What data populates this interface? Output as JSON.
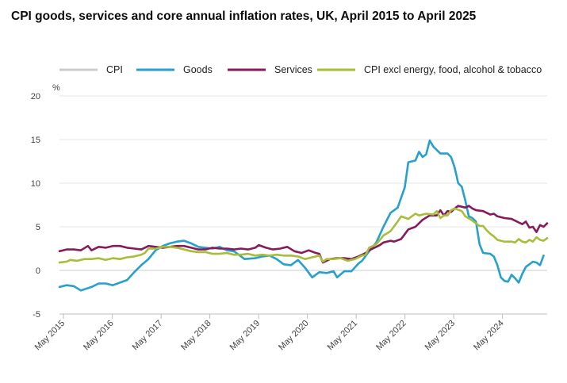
{
  "chart_data": {
    "type": "line",
    "title": "CPI goods, services and core annual inflation rates, UK, April 2015 to April 2025",
    "ylabel": "%",
    "xlabel": "",
    "ylim": [
      -5,
      20
    ],
    "yticks": [
      "20",
      "15",
      "10",
      "5",
      "0",
      "-5"
    ],
    "x_tick_labels": [
      "May 2015",
      "May 2016",
      "May 2017",
      "May 2018",
      "May 2019",
      "May 2020",
      "May 2021",
      "May 2022",
      "May 2023",
      "May 2024"
    ],
    "x_start": "Apr 2015",
    "x_end": "Apr 2025",
    "legend": [
      {
        "name": "CPI",
        "color": "#cccccc"
      },
      {
        "name": "Goods",
        "color": "#27a0cc"
      },
      {
        "name": "Services",
        "color": "#871a5b"
      },
      {
        "name": "CPI excl energy, food, alcohol & tobacco",
        "color": "#a8bd3a"
      }
    ],
    "series": [
      {
        "name": "Goods",
        "color": "#27a0cc",
        "anchors": [
          [
            0,
            -1.9
          ],
          [
            2,
            -1.7
          ],
          [
            4,
            -1.8
          ],
          [
            6,
            -2.3
          ],
          [
            9,
            -1.9
          ],
          [
            11,
            -1.5
          ],
          [
            13,
            -1.5
          ],
          [
            15,
            -1.7
          ],
          [
            17,
            -1.4
          ],
          [
            19,
            -1.1
          ],
          [
            21,
            -0.2
          ],
          [
            23,
            0.6
          ],
          [
            25,
            1.3
          ],
          [
            27,
            2.3
          ],
          [
            29,
            2.8
          ],
          [
            31,
            3.1
          ],
          [
            33,
            3.3
          ],
          [
            35,
            3.4
          ],
          [
            37,
            3.1
          ],
          [
            39,
            2.7
          ],
          [
            41,
            2.6
          ],
          [
            43,
            2.5
          ],
          [
            45,
            2.7
          ],
          [
            47,
            2.3
          ],
          [
            49,
            2.2
          ],
          [
            52,
            1.3
          ],
          [
            55,
            1.4
          ],
          [
            57,
            1.6
          ],
          [
            59,
            1.7
          ],
          [
            61,
            1.3
          ],
          [
            63,
            0.7
          ],
          [
            65,
            0.6
          ],
          [
            67,
            1.2
          ],
          [
            69,
            0.3
          ],
          [
            71,
            -0.8
          ],
          [
            73,
            -0.2
          ],
          [
            75,
            -0.3
          ],
          [
            77,
            -0.1
          ],
          [
            78,
            -0.8
          ],
          [
            80,
            -0.1
          ],
          [
            82,
            -0.1
          ],
          [
            84,
            0.8
          ],
          [
            85,
            1.1
          ],
          [
            87,
            2.2
          ],
          [
            89,
            3.2
          ],
          [
            91,
            5.0
          ],
          [
            93,
            6.6
          ],
          [
            95,
            7.2
          ],
          [
            97,
            9.5
          ],
          [
            98,
            12.4
          ],
          [
            100,
            12.6
          ],
          [
            101,
            13.6
          ],
          [
            102,
            13.0
          ],
          [
            103,
            13.3
          ],
          [
            104,
            14.9
          ],
          [
            105,
            14.2
          ],
          [
            107,
            13.4
          ],
          [
            109,
            13.4
          ],
          [
            110,
            13.0
          ],
          [
            111,
            11.8
          ],
          [
            112,
            10.0
          ],
          [
            113,
            9.6
          ],
          [
            114,
            8.0
          ],
          [
            115,
            6.2
          ],
          [
            116,
            6.0
          ],
          [
            117,
            5.6
          ],
          [
            118,
            3.0
          ],
          [
            119,
            2.0
          ],
          [
            121,
            1.9
          ],
          [
            122,
            1.6
          ],
          [
            123,
            0.6
          ],
          [
            124,
            -0.8
          ],
          [
            125,
            -1.2
          ],
          [
            126,
            -1.3
          ],
          [
            127,
            -0.5
          ],
          [
            128,
            -0.9
          ],
          [
            129,
            -1.4
          ],
          [
            130,
            -0.4
          ],
          [
            131,
            0.4
          ],
          [
            132,
            0.7
          ],
          [
            133,
            1.0
          ],
          [
            134,
            0.9
          ],
          [
            135,
            0.6
          ],
          [
            136,
            1.7
          ]
        ]
      },
      {
        "name": "Services",
        "color": "#871a5b",
        "anchors": [
          [
            0,
            2.2
          ],
          [
            2,
            2.4
          ],
          [
            4,
            2.4
          ],
          [
            6,
            2.3
          ],
          [
            8,
            2.8
          ],
          [
            9,
            2.3
          ],
          [
            11,
            2.7
          ],
          [
            13,
            2.6
          ],
          [
            15,
            2.8
          ],
          [
            17,
            2.8
          ],
          [
            19,
            2.6
          ],
          [
            21,
            2.5
          ],
          [
            23,
            2.4
          ],
          [
            25,
            2.8
          ],
          [
            27,
            2.7
          ],
          [
            29,
            2.6
          ],
          [
            31,
            2.7
          ],
          [
            33,
            2.8
          ],
          [
            35,
            2.8
          ],
          [
            37,
            2.6
          ],
          [
            39,
            2.4
          ],
          [
            41,
            2.4
          ],
          [
            43,
            2.6
          ],
          [
            45,
            2.5
          ],
          [
            47,
            2.5
          ],
          [
            49,
            2.4
          ],
          [
            51,
            2.5
          ],
          [
            53,
            2.4
          ],
          [
            55,
            2.6
          ],
          [
            56,
            2.9
          ],
          [
            58,
            2.6
          ],
          [
            60,
            2.4
          ],
          [
            62,
            2.5
          ],
          [
            64,
            2.7
          ],
          [
            66,
            2.2
          ],
          [
            68,
            2.0
          ],
          [
            70,
            2.3
          ],
          [
            72,
            2.0
          ],
          [
            73,
            1.9
          ],
          [
            74,
            0.9
          ],
          [
            76,
            1.3
          ],
          [
            78,
            1.4
          ],
          [
            80,
            1.4
          ],
          [
            82,
            1.3
          ],
          [
            84,
            1.6
          ],
          [
            86,
            2.0
          ],
          [
            87,
            2.3
          ],
          [
            88,
            2.5
          ],
          [
            89,
            2.7
          ],
          [
            90,
            2.9
          ],
          [
            91,
            3.2
          ],
          [
            93,
            3.4
          ],
          [
            94,
            3.3
          ],
          [
            96,
            3.6
          ],
          [
            98,
            4.7
          ],
          [
            100,
            5.0
          ],
          [
            101,
            5.4
          ],
          [
            102,
            5.8
          ],
          [
            104,
            6.3
          ],
          [
            106,
            6.3
          ],
          [
            107,
            6.9
          ],
          [
            108,
            6.3
          ],
          [
            109,
            6.8
          ],
          [
            110,
            6.7
          ],
          [
            111,
            7.1
          ],
          [
            112,
            7.4
          ],
          [
            113,
            7.3
          ],
          [
            114,
            7.2
          ],
          [
            115,
            7.4
          ],
          [
            116,
            7.1
          ],
          [
            117,
            6.9
          ],
          [
            119,
            6.8
          ],
          [
            121,
            6.4
          ],
          [
            122,
            6.5
          ],
          [
            123,
            6.2
          ],
          [
            125,
            6.0
          ],
          [
            127,
            5.9
          ],
          [
            128,
            5.7
          ],
          [
            129,
            5.5
          ],
          [
            130,
            5.3
          ],
          [
            131,
            5.6
          ],
          [
            132,
            4.9
          ],
          [
            133,
            5.0
          ],
          [
            134,
            4.4
          ],
          [
            135,
            5.2
          ],
          [
            136,
            5.0
          ],
          [
            137,
            5.4
          ]
        ]
      },
      {
        "name": "CPI excl energy, food, alcohol & tobacco",
        "color": "#a8bd3a",
        "anchors": [
          [
            0,
            0.9
          ],
          [
            2,
            1.0
          ],
          [
            3,
            1.2
          ],
          [
            5,
            1.1
          ],
          [
            7,
            1.3
          ],
          [
            9,
            1.3
          ],
          [
            11,
            1.4
          ],
          [
            13,
            1.2
          ],
          [
            15,
            1.4
          ],
          [
            17,
            1.3
          ],
          [
            19,
            1.5
          ],
          [
            21,
            1.6
          ],
          [
            23,
            1.8
          ],
          [
            24,
            2.0
          ],
          [
            25,
            2.5
          ],
          [
            27,
            2.5
          ],
          [
            29,
            2.7
          ],
          [
            31,
            2.7
          ],
          [
            33,
            2.6
          ],
          [
            35,
            2.4
          ],
          [
            37,
            2.2
          ],
          [
            39,
            2.1
          ],
          [
            41,
            2.1
          ],
          [
            43,
            1.9
          ],
          [
            45,
            1.9
          ],
          [
            47,
            2.0
          ],
          [
            49,
            1.8
          ],
          [
            51,
            1.8
          ],
          [
            53,
            1.9
          ],
          [
            55,
            1.7
          ],
          [
            57,
            1.8
          ],
          [
            59,
            1.7
          ],
          [
            61,
            1.8
          ],
          [
            63,
            1.7
          ],
          [
            65,
            1.7
          ],
          [
            67,
            1.6
          ],
          [
            69,
            1.3
          ],
          [
            71,
            1.5
          ],
          [
            73,
            1.7
          ],
          [
            74,
            1.0
          ],
          [
            75,
            1.3
          ],
          [
            77,
            1.3
          ],
          [
            79,
            1.4
          ],
          [
            81,
            1.1
          ],
          [
            83,
            1.3
          ],
          [
            85,
            1.7
          ],
          [
            86,
            1.8
          ],
          [
            87,
            2.6
          ],
          [
            89,
            3.0
          ],
          [
            91,
            4.0
          ],
          [
            93,
            4.5
          ],
          [
            95,
            5.6
          ],
          [
            96,
            6.2
          ],
          [
            98,
            5.9
          ],
          [
            100,
            6.5
          ],
          [
            101,
            6.3
          ],
          [
            103,
            6.5
          ],
          [
            105,
            6.4
          ],
          [
            106,
            6.8
          ],
          [
            107,
            6.0
          ],
          [
            108,
            6.3
          ],
          [
            109,
            6.3
          ],
          [
            110,
            6.9
          ],
          [
            111,
            7.1
          ],
          [
            113,
            6.8
          ],
          [
            114,
            6.2
          ],
          [
            116,
            5.7
          ],
          [
            118,
            5.1
          ],
          [
            119,
            5.1
          ],
          [
            120,
            4.6
          ],
          [
            121,
            4.2
          ],
          [
            122,
            3.9
          ],
          [
            123,
            3.5
          ],
          [
            125,
            3.3
          ],
          [
            127,
            3.3
          ],
          [
            128,
            3.2
          ],
          [
            129,
            3.6
          ],
          [
            130,
            3.3
          ],
          [
            131,
            3.2
          ],
          [
            132,
            3.5
          ],
          [
            133,
            3.3
          ],
          [
            134,
            3.8
          ],
          [
            135,
            3.5
          ],
          [
            136,
            3.4
          ],
          [
            137,
            3.7
          ]
        ]
      }
    ]
  }
}
